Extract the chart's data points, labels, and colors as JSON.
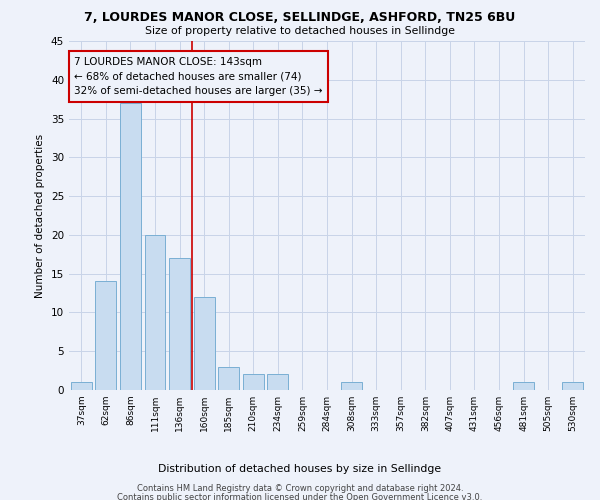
{
  "title": "7, LOURDES MANOR CLOSE, SELLINDGE, ASHFORD, TN25 6BU",
  "subtitle": "Size of property relative to detached houses in Sellindge",
  "xlabel": "Distribution of detached houses by size in Sellindge",
  "ylabel": "Number of detached properties",
  "footer_line1": "Contains HM Land Registry data © Crown copyright and database right 2024.",
  "footer_line2": "Contains public sector information licensed under the Open Government Licence v3.0.",
  "bar_labels": [
    "37sqm",
    "62sqm",
    "86sqm",
    "111sqm",
    "136sqm",
    "160sqm",
    "185sqm",
    "210sqm",
    "234sqm",
    "259sqm",
    "284sqm",
    "308sqm",
    "333sqm",
    "357sqm",
    "382sqm",
    "407sqm",
    "431sqm",
    "456sqm",
    "481sqm",
    "505sqm",
    "530sqm"
  ],
  "bar_values": [
    1,
    14,
    37,
    20,
    17,
    12,
    3,
    2,
    2,
    0,
    0,
    1,
    0,
    0,
    0,
    0,
    0,
    0,
    1,
    0,
    1
  ],
  "bar_color": "#c8dcf0",
  "bar_edge_color": "#7aafd4",
  "grid_color": "#c8d4e8",
  "background_color": "#eef2fa",
  "vline_x": 4.5,
  "vline_color": "#cc0000",
  "annotation_text": "7 LOURDES MANOR CLOSE: 143sqm\n← 68% of detached houses are smaller (74)\n32% of semi-detached houses are larger (35) →",
  "annotation_box_color": "#cc0000",
  "ylim": [
    0,
    45
  ],
  "yticks": [
    0,
    5,
    10,
    15,
    20,
    25,
    30,
    35,
    40,
    45
  ]
}
